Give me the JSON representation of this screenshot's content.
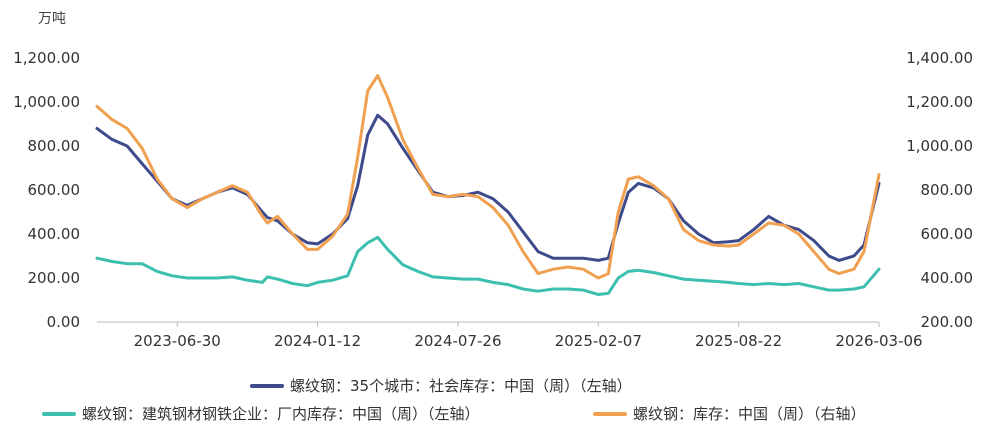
{
  "chart_data": {
    "type": "line",
    "unit_left": "万吨",
    "x_ticks": [
      "2023-06-30",
      "2024-01-12",
      "2024-07-26",
      "2025-02-07",
      "2025-08-22",
      "2026-03-06"
    ],
    "x_range": [
      "2023-03-10",
      "2026-03-06"
    ],
    "y_left": {
      "min": 0,
      "max": 1200,
      "ticks": [
        "0.00",
        "200.00",
        "400.00",
        "600.00",
        "800.00",
        "1,000.00",
        "1,200.00"
      ]
    },
    "y_right": {
      "min": 200,
      "max": 1400,
      "ticks": [
        "200.00",
        "400.00",
        "600.00",
        "800.00",
        "1,000.00",
        "1,200.00",
        "1,400.00"
      ]
    },
    "grid": false,
    "legend_position": "bottom",
    "series": [
      {
        "name": "螺纹钢：35个城市：社会库存：中国（周）（左轴）",
        "axis": "left",
        "color": "#3d4a8c",
        "points": [
          [
            "2023-03-10",
            880
          ],
          [
            "2023-03-31",
            830
          ],
          [
            "2023-04-21",
            800
          ],
          [
            "2023-05-12",
            720
          ],
          [
            "2023-06-02",
            640
          ],
          [
            "2023-06-23",
            560
          ],
          [
            "2023-07-14",
            530
          ],
          [
            "2023-08-04",
            560
          ],
          [
            "2023-08-25",
            590
          ],
          [
            "2023-09-15",
            610
          ],
          [
            "2023-10-06",
            580
          ],
          [
            "2023-10-27",
            500
          ],
          [
            "2023-11-03",
            475
          ],
          [
            "2023-11-17",
            460
          ],
          [
            "2023-12-08",
            400
          ],
          [
            "2023-12-29",
            360
          ],
          [
            "2024-01-12",
            355
          ],
          [
            "2024-02-02",
            400
          ],
          [
            "2024-02-23",
            470
          ],
          [
            "2024-03-08",
            620
          ],
          [
            "2024-03-22",
            850
          ],
          [
            "2024-04-05",
            940
          ],
          [
            "2024-04-19",
            900
          ],
          [
            "2024-05-10",
            790
          ],
          [
            "2024-05-31",
            690
          ],
          [
            "2024-06-21",
            590
          ],
          [
            "2024-07-12",
            570
          ],
          [
            "2024-08-02",
            575
          ],
          [
            "2024-08-23",
            590
          ],
          [
            "2024-09-13",
            560
          ],
          [
            "2024-10-04",
            500
          ],
          [
            "2024-10-25",
            410
          ],
          [
            "2024-11-15",
            320
          ],
          [
            "2024-12-06",
            290
          ],
          [
            "2024-12-27",
            290
          ],
          [
            "2025-01-17",
            290
          ],
          [
            "2025-02-07",
            280
          ],
          [
            "2025-02-21",
            290
          ],
          [
            "2025-03-07",
            450
          ],
          [
            "2025-03-21",
            590
          ],
          [
            "2025-04-04",
            630
          ],
          [
            "2025-04-25",
            610
          ],
          [
            "2025-05-16",
            560
          ],
          [
            "2025-06-06",
            460
          ],
          [
            "2025-06-27",
            400
          ],
          [
            "2025-07-18",
            360
          ],
          [
            "2025-08-08",
            365
          ],
          [
            "2025-08-22",
            370
          ],
          [
            "2025-09-12",
            420
          ],
          [
            "2025-10-03",
            480
          ],
          [
            "2025-10-24",
            440
          ],
          [
            "2025-11-14",
            420
          ],
          [
            "2025-12-05",
            370
          ],
          [
            "2025-12-26",
            300
          ],
          [
            "2026-01-09",
            280
          ],
          [
            "2026-01-30",
            300
          ],
          [
            "2026-02-13",
            350
          ],
          [
            "2026-03-06",
            630
          ]
        ]
      },
      {
        "name": "螺纹钢：建筑钢材钢铁企业：厂内库存：中国（周）（左轴）",
        "axis": "left",
        "color": "#3cbfae",
        "points": [
          [
            "2023-03-10",
            290
          ],
          [
            "2023-03-31",
            275
          ],
          [
            "2023-04-21",
            265
          ],
          [
            "2023-05-12",
            265
          ],
          [
            "2023-06-02",
            230
          ],
          [
            "2023-06-23",
            210
          ],
          [
            "2023-07-14",
            200
          ],
          [
            "2023-08-04",
            200
          ],
          [
            "2023-08-25",
            200
          ],
          [
            "2023-09-15",
            205
          ],
          [
            "2023-10-06",
            190
          ],
          [
            "2023-10-27",
            180
          ],
          [
            "2023-11-03",
            205
          ],
          [
            "2023-11-17",
            195
          ],
          [
            "2023-12-08",
            175
          ],
          [
            "2023-12-29",
            165
          ],
          [
            "2024-01-12",
            180
          ],
          [
            "2024-02-02",
            190
          ],
          [
            "2024-02-23",
            210
          ],
          [
            "2024-03-08",
            320
          ],
          [
            "2024-03-22",
            360
          ],
          [
            "2024-04-05",
            385
          ],
          [
            "2024-04-19",
            330
          ],
          [
            "2024-05-10",
            260
          ],
          [
            "2024-05-31",
            230
          ],
          [
            "2024-06-21",
            205
          ],
          [
            "2024-07-12",
            200
          ],
          [
            "2024-08-02",
            195
          ],
          [
            "2024-08-23",
            195
          ],
          [
            "2024-09-13",
            180
          ],
          [
            "2024-10-04",
            170
          ],
          [
            "2024-10-25",
            150
          ],
          [
            "2024-11-15",
            140
          ],
          [
            "2024-12-06",
            150
          ],
          [
            "2024-12-27",
            150
          ],
          [
            "2025-01-17",
            145
          ],
          [
            "2025-02-07",
            125
          ],
          [
            "2025-02-21",
            130
          ],
          [
            "2025-03-07",
            200
          ],
          [
            "2025-03-21",
            230
          ],
          [
            "2025-04-04",
            235
          ],
          [
            "2025-04-25",
            225
          ],
          [
            "2025-05-16",
            210
          ],
          [
            "2025-06-06",
            195
          ],
          [
            "2025-06-27",
            190
          ],
          [
            "2025-07-18",
            185
          ],
          [
            "2025-08-08",
            180
          ],
          [
            "2025-08-22",
            175
          ],
          [
            "2025-09-12",
            170
          ],
          [
            "2025-10-03",
            175
          ],
          [
            "2025-10-24",
            170
          ],
          [
            "2025-11-14",
            175
          ],
          [
            "2025-12-05",
            160
          ],
          [
            "2025-12-26",
            145
          ],
          [
            "2026-01-09",
            145
          ],
          [
            "2026-01-30",
            150
          ],
          [
            "2026-02-13",
            160
          ],
          [
            "2026-03-06",
            240
          ]
        ]
      },
      {
        "name": "螺纹钢：库存：中国（周）（右轴）",
        "axis": "right",
        "color": "#f0a050",
        "points": [
          [
            "2023-03-10",
            1180
          ],
          [
            "2023-03-31",
            1120
          ],
          [
            "2023-04-21",
            1080
          ],
          [
            "2023-05-12",
            990
          ],
          [
            "2023-06-02",
            850
          ],
          [
            "2023-06-23",
            760
          ],
          [
            "2023-07-14",
            720
          ],
          [
            "2023-08-04",
            760
          ],
          [
            "2023-08-25",
            790
          ],
          [
            "2023-09-15",
            820
          ],
          [
            "2023-10-06",
            790
          ],
          [
            "2023-10-27",
            680
          ],
          [
            "2023-11-03",
            650
          ],
          [
            "2023-11-17",
            680
          ],
          [
            "2023-12-08",
            600
          ],
          [
            "2023-12-29",
            530
          ],
          [
            "2024-01-12",
            530
          ],
          [
            "2024-02-02",
            590
          ],
          [
            "2024-02-23",
            690
          ],
          [
            "2024-03-08",
            950
          ],
          [
            "2024-03-22",
            1250
          ],
          [
            "2024-04-05",
            1320
          ],
          [
            "2024-04-19",
            1220
          ],
          [
            "2024-05-10",
            1030
          ],
          [
            "2024-05-31",
            900
          ],
          [
            "2024-06-21",
            780
          ],
          [
            "2024-07-12",
            770
          ],
          [
            "2024-08-02",
            780
          ],
          [
            "2024-08-23",
            770
          ],
          [
            "2024-09-13",
            720
          ],
          [
            "2024-10-04",
            640
          ],
          [
            "2024-10-25",
            520
          ],
          [
            "2024-11-15",
            420
          ],
          [
            "2024-12-06",
            440
          ],
          [
            "2024-12-27",
            450
          ],
          [
            "2025-01-17",
            440
          ],
          [
            "2025-02-07",
            400
          ],
          [
            "2025-02-21",
            420
          ],
          [
            "2025-03-07",
            700
          ],
          [
            "2025-03-21",
            850
          ],
          [
            "2025-04-04",
            860
          ],
          [
            "2025-04-25",
            820
          ],
          [
            "2025-05-16",
            760
          ],
          [
            "2025-06-06",
            620
          ],
          [
            "2025-06-27",
            570
          ],
          [
            "2025-07-18",
            550
          ],
          [
            "2025-08-08",
            545
          ],
          [
            "2025-08-22",
            550
          ],
          [
            "2025-09-12",
            600
          ],
          [
            "2025-10-03",
            650
          ],
          [
            "2025-10-24",
            640
          ],
          [
            "2025-11-14",
            600
          ],
          [
            "2025-12-05",
            520
          ],
          [
            "2025-12-26",
            440
          ],
          [
            "2026-01-09",
            420
          ],
          [
            "2026-01-30",
            440
          ],
          [
            "2026-02-13",
            520
          ],
          [
            "2026-03-06",
            870
          ]
        ]
      }
    ]
  }
}
